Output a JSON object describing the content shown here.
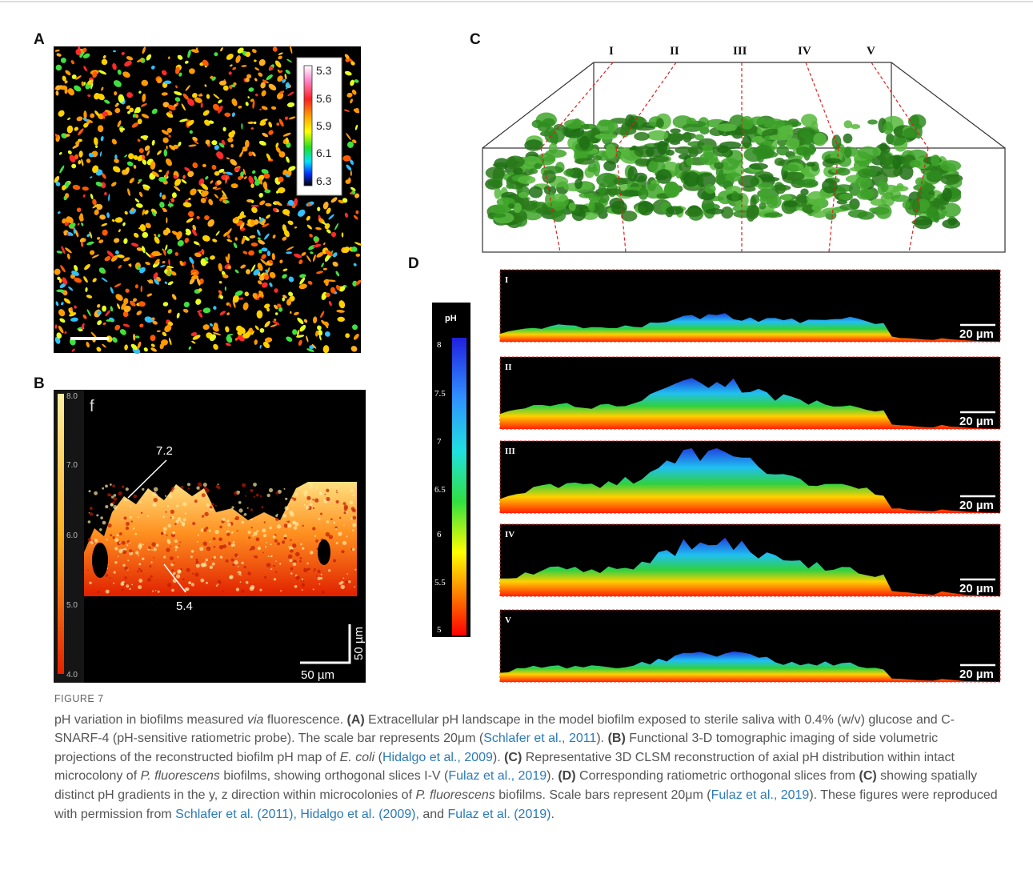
{
  "figure": {
    "panels": {
      "a": {
        "label": "A",
        "colorbar_ticks": [
          "5.3",
          "5.6",
          "5.9",
          "6.1",
          "6.3"
        ]
      },
      "b": {
        "label": "B",
        "colorbar_ticks": [
          "8.0",
          "7.0",
          "6.0",
          "5.0",
          "4.0"
        ],
        "panel_tag": "f",
        "annotations": [
          "7.2",
          "5.4"
        ],
        "scale_labels": [
          "50 µm",
          "50 µm"
        ]
      },
      "c": {
        "label": "C",
        "slices": [
          "I",
          "II",
          "III",
          "IV",
          "V"
        ]
      },
      "d": {
        "label": "D",
        "colorbar_title": "pH",
        "colorbar_ticks": [
          "8",
          "7.5",
          "7",
          "6.5",
          "6",
          "5.5",
          "5"
        ],
        "slices": [
          "I",
          "II",
          "III",
          "IV",
          "V"
        ],
        "scale_label": "20 µm"
      }
    }
  },
  "caption": {
    "heading": "FIGURE 7",
    "runs": [
      "pH variation in biofilms measured ",
      "via",
      " fluorescence. ",
      "(A)",
      " Extracellular pH landscape in the model biofilm exposed to sterile saliva with 0.4% (w/v) glucose and C-SNARF-4 (pH-sensitive ratiometric probe). The scale bar represents 20μm (",
      "Schlafer et al., 2011",
      "). ",
      "(B)",
      " Functional 3-D tomographic imaging of side volumetric projections of the reconstructed biofilm pH map of ",
      "E. coli",
      " (",
      "Hidalgo et al., 2009",
      "). ",
      "(C)",
      " Representative 3D CLSM reconstruction of axial pH distribution within intact microcolony of ",
      "P. fluorescens",
      " biofilms, showing orthogonal slices I-V (",
      "Fulaz et al., 2019",
      "). ",
      "(D)",
      " Corresponding ratiometric orthogonal slices from ",
      "(C)",
      " showing spatially distinct pH gradients in the y, z direction within microcolonies of ",
      "P. fluorescens",
      " biofilms. Scale bars represent 20μm (",
      "Fulaz et al., 2019",
      "). These figures were reproduced with permission from ",
      "Schlafer et al. (2011), ",
      "Hidalgo et al. (2009),",
      " and ",
      "Fulaz et al. (2019)",
      "."
    ]
  }
}
